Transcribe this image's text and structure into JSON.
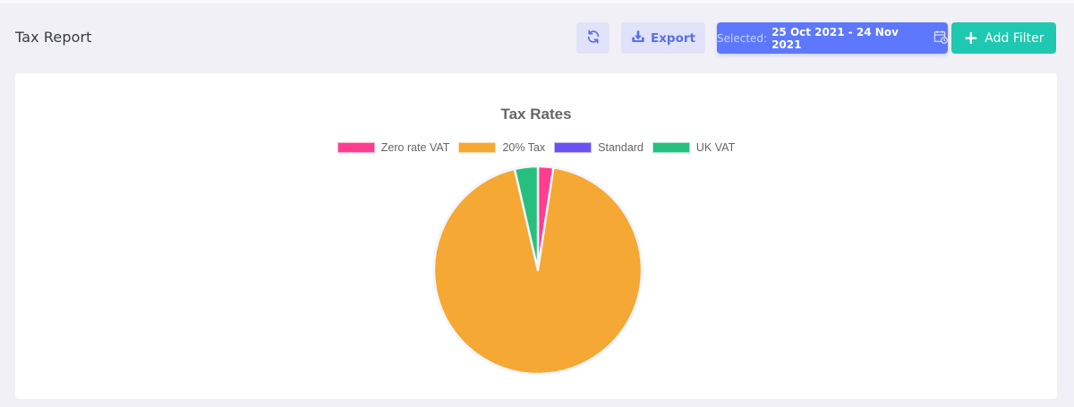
{
  "header": {
    "title": "Tax Report",
    "refresh_icon": "refresh-icon",
    "export_label": "Export",
    "export_icon": "download-tray-icon",
    "date_range": {
      "label": "Selected:",
      "value": "25 Oct 2021 - 24 Nov 2021",
      "icon": "calendar-clock-icon"
    },
    "add_filter_label": "Add Filter",
    "add_filter_icon": "plus-icon"
  },
  "colors": {
    "accent_blue": "#5d78fc",
    "accent_teal": "#1fc8b0",
    "soft_blue_bg": "#e0e3f8",
    "page_bg": "#f0f0f6"
  },
  "chart_data": {
    "type": "pie",
    "title": "Tax Rates",
    "legend_position": "top",
    "categories": [
      "Zero rate VAT",
      "20% Tax",
      "Standard",
      "UK VAT"
    ],
    "values": [
      2.4,
      94.0,
      0.0,
      3.6
    ],
    "colors": [
      "#ff3d8f",
      "#f5a833",
      "#6a52f2",
      "#27bf7d"
    ],
    "units": "percent (estimated from slice angles)"
  }
}
